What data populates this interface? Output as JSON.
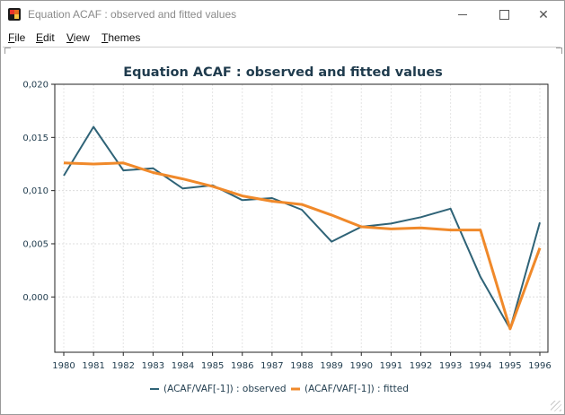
{
  "window": {
    "title": "Equation ACAF : observed and fitted values",
    "minimize_glyph": "",
    "maximize_glyph": "",
    "close_glyph": "✕"
  },
  "menu": {
    "items": [
      {
        "label": "File",
        "mnemonic": "F",
        "rest": "ile"
      },
      {
        "label": "Edit",
        "mnemonic": "E",
        "rest": "dit"
      },
      {
        "label": "View",
        "mnemonic": "V",
        "rest": "iew"
      },
      {
        "label": "Themes",
        "mnemonic": "T",
        "rest": "hemes"
      }
    ]
  },
  "chart_data": {
    "type": "line",
    "title": "Equation ACAF : observed and fitted values",
    "xlabel": "",
    "ylabel": "",
    "categories": [
      "1980",
      "1981",
      "1982",
      "1983",
      "1984",
      "1985",
      "1986",
      "1987",
      "1988",
      "1989",
      "1990",
      "1991",
      "1992",
      "1993",
      "1994",
      "1995",
      "1996"
    ],
    "y_ticks": [
      "0,020",
      "0,015",
      "0,010",
      "0,005",
      "0,000"
    ],
    "y_tick_values": [
      0.02,
      0.015,
      0.01,
      0.005,
      0.0
    ],
    "ylim": [
      -0.0052,
      0.02
    ],
    "grid": true,
    "legend_position": "bottom-center",
    "series": [
      {
        "name": "(ACAF/VAF[-1]) : observed",
        "color": "#2f6377",
        "values": [
          0.0114,
          0.016,
          0.0119,
          0.0121,
          0.0102,
          0.0105,
          0.0091,
          0.0093,
          0.0082,
          0.0052,
          0.0066,
          0.0069,
          0.0075,
          0.0083,
          0.0019,
          -0.003,
          0.007
        ]
      },
      {
        "name": "(ACAF/VAF[-1])  : fitted",
        "color": "#f0892a",
        "values": [
          0.0126,
          0.0125,
          0.0126,
          0.0117,
          0.0111,
          0.0104,
          0.0095,
          0.009,
          0.0087,
          0.0077,
          0.0066,
          0.0064,
          0.0065,
          0.0063,
          0.0063,
          -0.003,
          0.0046
        ]
      }
    ]
  }
}
